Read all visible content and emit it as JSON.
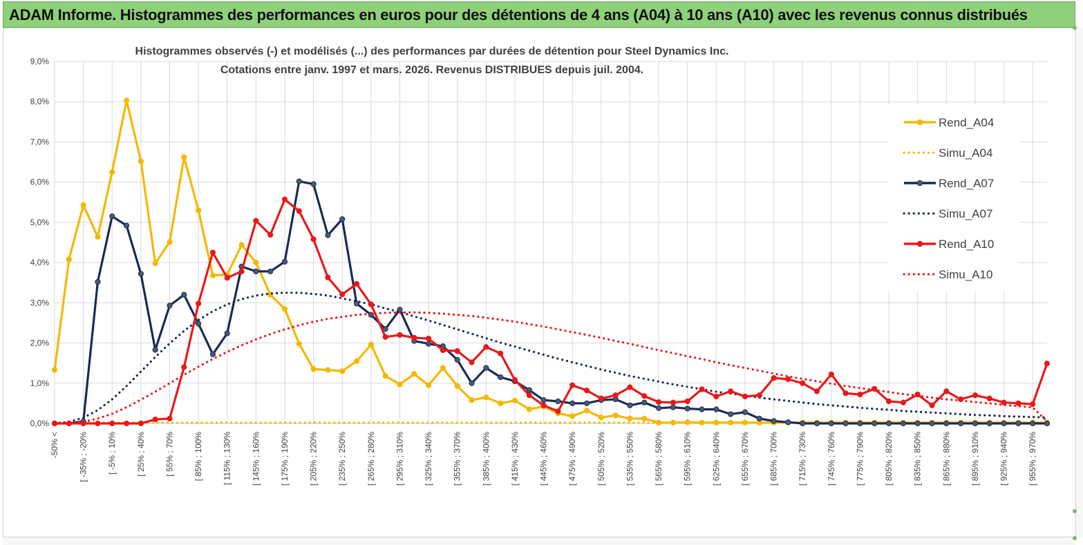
{
  "banner": {
    "title": "ADAM Informe. Histogrammes des performances en euros pour des détentions de 4 ans (A04) à 10 ans (A10) avec les revenus connus distribués"
  },
  "colors": {
    "banner_bg": "#8fd07a",
    "rend_a04": "#f5b800",
    "rend_a07": "#1a2a55",
    "rend_a10": "#e8191a",
    "grid": "#d9d9d9"
  },
  "chart_data": {
    "type": "line",
    "title_lines": [
      "Histogrammes observés (-) et modélisés (...) des performances par durées de détention pour Steel Dynamics Inc.",
      "Cotations entre janv. 1997 et mars. 2026. Revenus DISTRIBUES depuis juil. 2004."
    ],
    "ylim": [
      0,
      9
    ],
    "y_ticks": [
      "0,0%",
      "1,0%",
      "2,0%",
      "3,0%",
      "4,0%",
      "5,0%",
      "6,0%",
      "7,0%",
      "8,0%",
      "9,0%"
    ],
    "grid": true,
    "legend_position": "right",
    "x_tick_labels": [
      "-50% <",
      "[ -35% ; -20%",
      "[ -5% ; 10%",
      "[ 25% ; 40%",
      "[ 55% ; 70%",
      "[ 85% ; 100%",
      "[ 115% ; 130%",
      "[ 145% ; 160%",
      "[ 175% ; 190%",
      "[ 205% ; 220%",
      "[ 235% ; 250%",
      "[ 265% ; 280%",
      "[ 295% ; 310%",
      "[ 325% ; 340%",
      "[ 355% ; 370%",
      "[ 385% ; 400%",
      "[ 415% ; 430%",
      "[ 445% ; 460%",
      "[ 475% ; 490%",
      "[ 505% ; 520%",
      "[ 535% ; 550%",
      "[ 565% ; 580%",
      "[ 595% ; 610%",
      "[ 625% ; 640%",
      "[ 655% ; 670%",
      "[ 685% ; 700%",
      "[ 715% ; 730%",
      "[ 745% ; 760%",
      "[ 775% ; 790%",
      "[ 805% ; 820%",
      "[ 835% ; 850%",
      "[ 865% ; 880%",
      "[ 895% ; 910%",
      "[ 925% ; 940%",
      "[ 955% ; 970%"
    ],
    "series": [
      {
        "name": "Rend_A04",
        "style": "solid",
        "values": [
          1.33,
          4.08,
          5.43,
          4.64,
          6.25,
          8.03,
          6.52,
          3.98,
          4.51,
          6.62,
          5.3,
          3.68,
          3.7,
          4.44,
          4.0,
          3.2,
          2.85,
          1.98,
          1.35,
          1.33,
          1.3,
          1.55,
          1.96,
          1.18,
          0.97,
          1.23,
          0.95,
          1.38,
          0.93,
          0.58,
          0.65,
          0.5,
          0.57,
          0.35,
          0.42,
          0.25,
          0.18,
          0.32,
          0.15,
          0.2,
          0.12,
          0.12,
          0.02,
          0.02,
          0.03,
          0.02,
          0.02,
          0.02,
          0.02,
          0.02,
          0.02,
          0.02,
          0.02,
          0.02,
          0.02,
          0.02,
          0.02,
          0.02,
          0.02,
          0.02,
          0.02,
          0.02,
          0.02,
          0.02,
          0.02,
          0.02,
          0.02,
          0.02,
          0.02,
          0.02
        ]
      },
      {
        "name": "Simu_A04",
        "style": "dotted",
        "values": [
          0.02,
          0.02,
          0.02,
          0.02,
          0.02,
          0.02,
          0.02,
          0.02,
          0.02,
          0.02,
          0.02,
          0.02,
          0.02,
          0.02,
          0.02,
          0.02,
          0.02,
          0.02,
          0.02,
          0.02,
          0.02,
          0.02,
          0.02,
          0.02,
          0.02,
          0.02,
          0.02,
          0.02,
          0.02,
          0.02,
          0.02,
          0.02,
          0.02,
          0.02,
          0.02,
          0.02,
          0.02,
          0.02,
          0.02,
          0.02,
          0.02,
          0.02,
          0.02,
          0.02,
          0.02,
          0.02,
          0.02,
          0.02,
          0.02,
          0.02,
          0.02,
          0.02,
          0.02,
          0.02,
          0.02,
          0.02,
          0.02,
          0.02,
          0.02,
          0.02,
          0.02,
          0.02,
          0.02,
          0.02,
          0.02,
          0.02,
          0.02,
          0.02,
          0.02,
          0.02
        ]
      },
      {
        "name": "Rend_A07",
        "style": "solid",
        "values": [
          0.0,
          0.0,
          0.05,
          3.52,
          5.15,
          4.92,
          3.72,
          1.83,
          2.93,
          3.2,
          2.48,
          1.72,
          2.24,
          3.9,
          3.78,
          3.78,
          4.02,
          6.02,
          5.95,
          4.68,
          5.08,
          2.98,
          2.7,
          2.35,
          2.83,
          2.05,
          1.98,
          1.92,
          1.58,
          1.0,
          1.38,
          1.15,
          1.05,
          0.83,
          0.58,
          0.55,
          0.5,
          0.5,
          0.58,
          0.6,
          0.45,
          0.52,
          0.38,
          0.4,
          0.37,
          0.35,
          0.35,
          0.23,
          0.28,
          0.12,
          0.06,
          0.03,
          0.0,
          0.0,
          0.0,
          0.0,
          0.0,
          0.0,
          0.0,
          0.0,
          0.0,
          0.0,
          0.0,
          0.0,
          0.0,
          0.0,
          0.0,
          0.0,
          0.0,
          0.0
        ]
      },
      {
        "name": "Simu_A07",
        "style": "dotted",
        "values": [
          0.0,
          0.04,
          0.14,
          0.33,
          0.6,
          0.93,
          1.29,
          1.65,
          1.99,
          2.3,
          2.57,
          2.79,
          2.96,
          3.09,
          3.18,
          3.23,
          3.25,
          3.25,
          3.22,
          3.18,
          3.11,
          3.04,
          2.96,
          2.86,
          2.77,
          2.66,
          2.56,
          2.45,
          2.34,
          2.23,
          2.12,
          2.01,
          1.91,
          1.81,
          1.71,
          1.61,
          1.52,
          1.43,
          1.34,
          1.26,
          1.18,
          1.11,
          1.04,
          0.97,
          0.91,
          0.85,
          0.79,
          0.74,
          0.69,
          0.64,
          0.6,
          0.56,
          0.52,
          0.48,
          0.45,
          0.42,
          0.39,
          0.36,
          0.34,
          0.31,
          0.29,
          0.27,
          0.25,
          0.23,
          0.21,
          0.2,
          0.18,
          0.17,
          0.16,
          0.15
        ]
      },
      {
        "name": "Rend_A10",
        "style": "solid",
        "values": [
          0.0,
          0.0,
          0.0,
          0.0,
          0.0,
          0.0,
          0.0,
          0.1,
          0.12,
          1.4,
          2.98,
          4.25,
          3.62,
          3.78,
          5.04,
          4.69,
          5.57,
          5.28,
          4.58,
          3.63,
          3.21,
          3.47,
          2.96,
          2.15,
          2.2,
          2.13,
          2.11,
          1.82,
          1.8,
          1.52,
          1.9,
          1.74,
          1.08,
          0.7,
          0.45,
          0.3,
          0.95,
          0.82,
          0.62,
          0.7,
          0.9,
          0.68,
          0.53,
          0.52,
          0.55,
          0.85,
          0.67,
          0.8,
          0.67,
          0.7,
          1.13,
          1.1,
          1.0,
          0.8,
          1.22,
          0.75,
          0.72,
          0.86,
          0.55,
          0.52,
          0.72,
          0.45,
          0.8,
          0.6,
          0.7,
          0.62,
          0.52,
          0.5,
          0.48,
          1.49
        ]
      },
      {
        "name": "Simu_A10",
        "style": "dotted",
        "values": [
          0.0,
          0.01,
          0.04,
          0.12,
          0.24,
          0.4,
          0.59,
          0.79,
          1.0,
          1.21,
          1.41,
          1.6,
          1.78,
          1.94,
          2.09,
          2.22,
          2.34,
          2.44,
          2.53,
          2.6,
          2.65,
          2.7,
          2.73,
          2.75,
          2.76,
          2.76,
          2.75,
          2.73,
          2.7,
          2.67,
          2.63,
          2.58,
          2.53,
          2.47,
          2.41,
          2.34,
          2.27,
          2.2,
          2.13,
          2.05,
          1.98,
          1.9,
          1.82,
          1.75,
          1.67,
          1.6,
          1.52,
          1.45,
          1.38,
          1.31,
          1.24,
          1.17,
          1.11,
          1.05,
          0.99,
          0.93,
          0.88,
          0.83,
          0.78,
          0.73,
          0.69,
          0.64,
          0.6,
          0.57,
          0.53,
          0.5,
          0.46,
          0.43,
          0.4,
          0.05
        ]
      }
    ]
  }
}
